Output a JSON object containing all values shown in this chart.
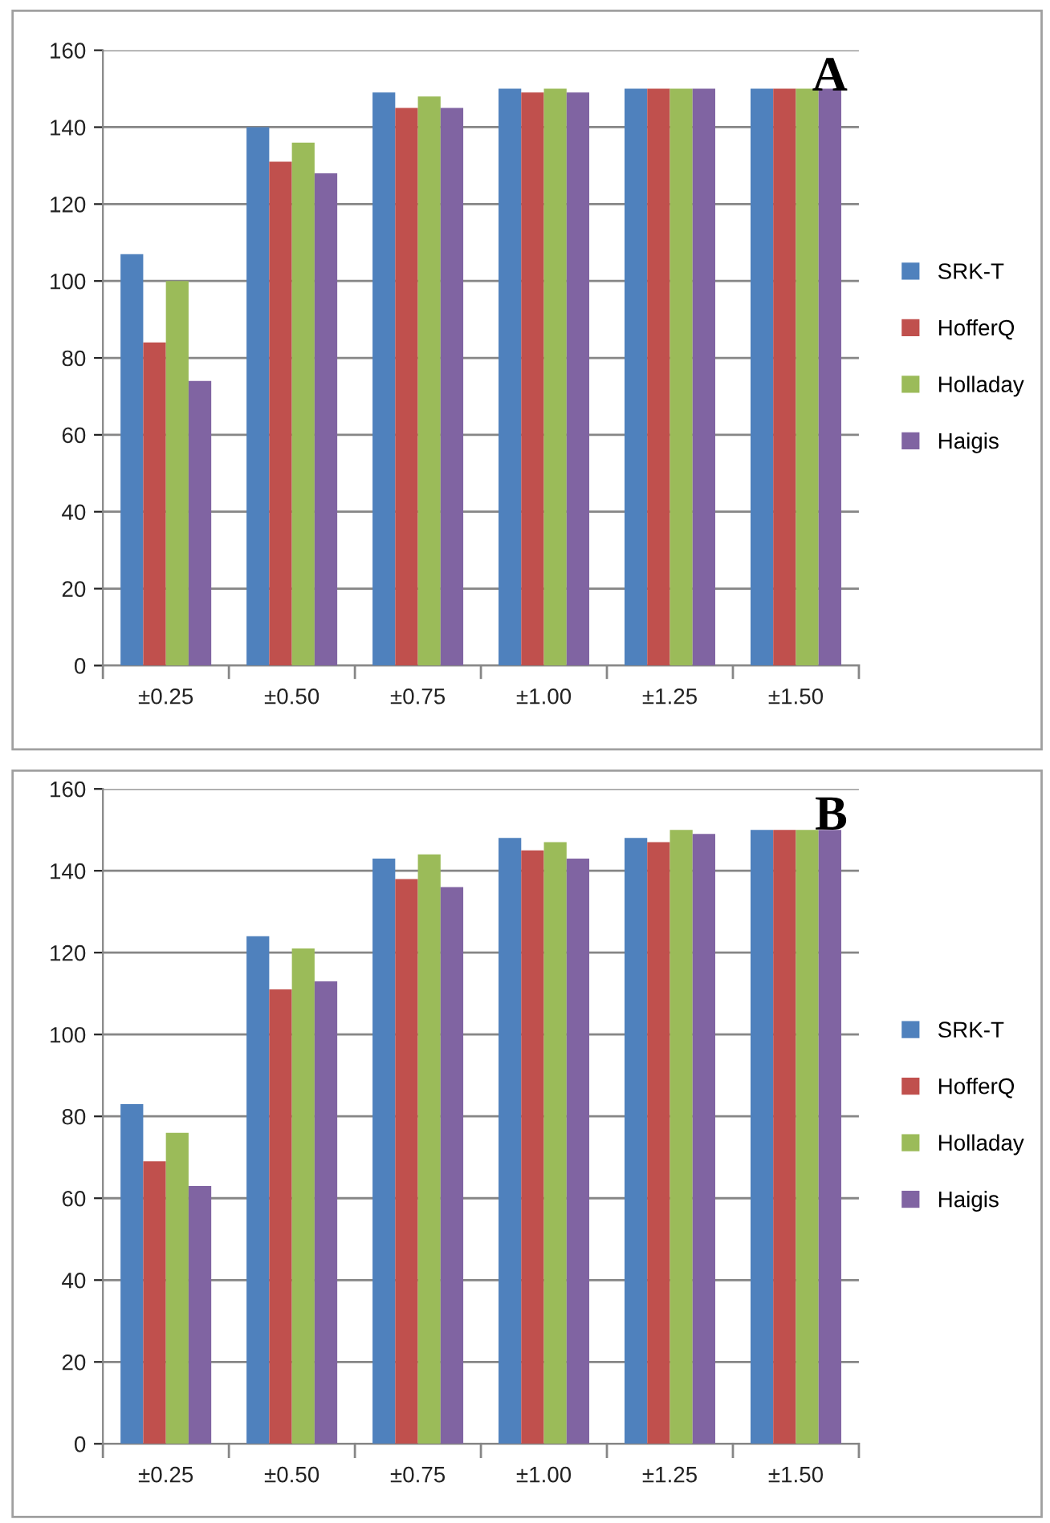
{
  "chart_data": [
    {
      "type": "bar",
      "title": "A",
      "categories": [
        "±0.25",
        "±0.50",
        "±0.75",
        "±1.00",
        "±1.25",
        "±1.50"
      ],
      "ylim": [
        0,
        160
      ],
      "yticks": [
        0,
        20,
        40,
        60,
        80,
        100,
        120,
        140,
        160
      ],
      "grid": "y",
      "legend": "right",
      "series": [
        {
          "name": "SRK-T",
          "color": "#4f81bd",
          "values": [
            107,
            140,
            149,
            150,
            150,
            150
          ]
        },
        {
          "name": "HofferQ",
          "color": "#c0504d",
          "values": [
            84,
            131,
            145,
            149,
            150,
            150
          ]
        },
        {
          "name": "Holladay",
          "color": "#9bbb59",
          "values": [
            100,
            136,
            148,
            150,
            150,
            150
          ]
        },
        {
          "name": "Haigis",
          "color": "#8064a2",
          "values": [
            74,
            128,
            145,
            149,
            150,
            150
          ]
        }
      ]
    },
    {
      "type": "bar",
      "title": "B",
      "categories": [
        "±0.25",
        "±0.50",
        "±0.75",
        "±1.00",
        "±1.25",
        "±1.50"
      ],
      "ylim": [
        0,
        160
      ],
      "yticks": [
        0,
        20,
        40,
        60,
        80,
        100,
        120,
        140,
        160
      ],
      "grid": "y",
      "legend": "right",
      "series": [
        {
          "name": "SRK-T",
          "color": "#4f81bd",
          "values": [
            83,
            124,
            143,
            148,
            148,
            150
          ]
        },
        {
          "name": "HofferQ",
          "color": "#c0504d",
          "values": [
            69,
            111,
            138,
            145,
            147,
            150
          ]
        },
        {
          "name": "Holladay",
          "color": "#9bbb59",
          "values": [
            76,
            121,
            144,
            147,
            150,
            150
          ]
        },
        {
          "name": "Haigis",
          "color": "#8064a2",
          "values": [
            63,
            113,
            136,
            143,
            149,
            150
          ]
        }
      ]
    }
  ]
}
